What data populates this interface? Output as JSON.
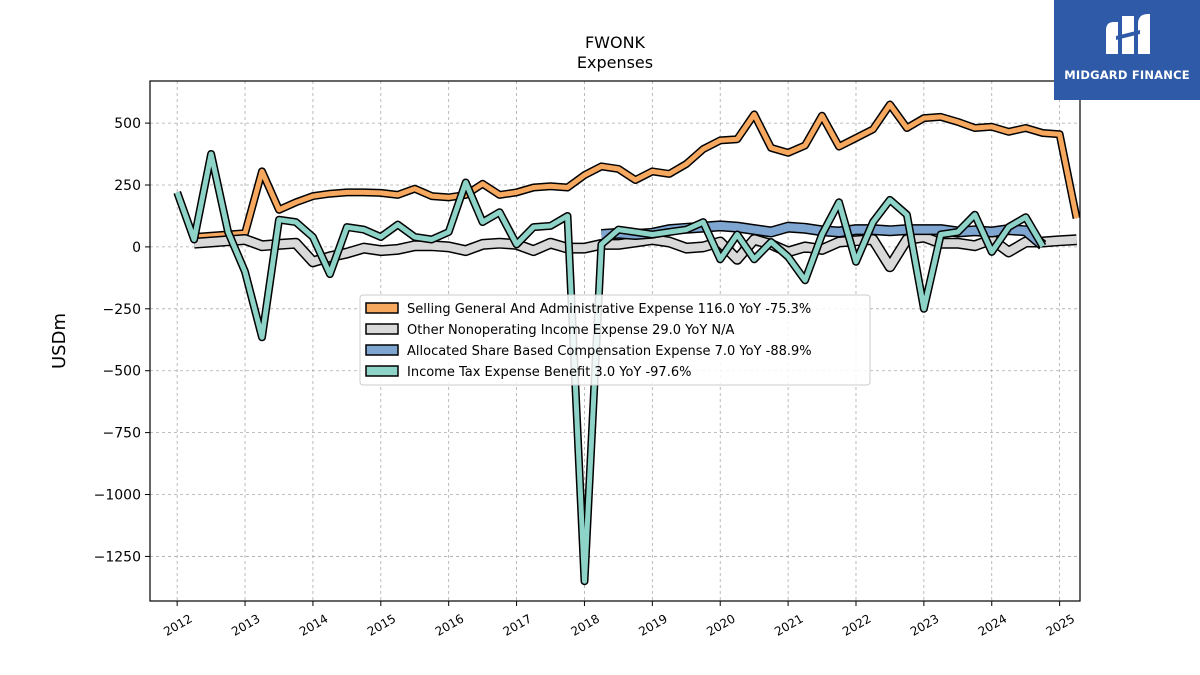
{
  "logo": {
    "text": "MIDGARD FINANCE",
    "icon": "midgard-m-logo-icon",
    "background": "#2f5aa8"
  },
  "chart_data": {
    "type": "line",
    "title": "FWONK",
    "subtitle": "Expenses",
    "xlabel": "",
    "ylabel": "USDm",
    "xlim": [
      2011.6,
      2025.3
    ],
    "ylim": [
      -1430,
      670
    ],
    "x_ticks": [
      "2012",
      "2013",
      "2014",
      "2015",
      "2016",
      "2017",
      "2018",
      "2019",
      "2020",
      "2021",
      "2022",
      "2023",
      "2024",
      "2025"
    ],
    "y_ticks": [
      500,
      250,
      0,
      -250,
      -500,
      -750,
      -1000,
      -1250
    ],
    "y_tick_labels": [
      "500",
      "250",
      "0",
      "−250",
      "−500",
      "−750",
      "−1000",
      "−1250"
    ],
    "grid": true,
    "legend_position": "center",
    "series": [
      {
        "name": "Selling General And Administrative Expense",
        "legend_label": "Selling General And Administrative Expense  116.0 YoY -75.3%",
        "color": "#f7a85f",
        "start": 2012.25,
        "step": 0.25,
        "values": [
          40,
          45,
          50,
          55,
          305,
          150,
          180,
          205,
          215,
          220,
          220,
          218,
          210,
          235,
          205,
          200,
          210,
          255,
          210,
          220,
          240,
          245,
          240,
          290,
          325,
          315,
          270,
          305,
          295,
          335,
          395,
          430,
          435,
          535,
          400,
          380,
          410,
          530,
          405,
          440,
          475,
          575,
          480,
          520,
          525,
          505,
          480,
          485,
          465,
          480,
          460,
          455,
          116
        ]
      },
      {
        "name": "Other Nonoperating Income Expense",
        "legend_label": "Other Nonoperating Income Expense  29.0 YoY N/A",
        "color": "#d9d9d9",
        "start": 2012.25,
        "step": 0.25,
        "values": [
          15,
          20,
          25,
          30,
          5,
          10,
          15,
          -60,
          -40,
          -25,
          -5,
          -15,
          -10,
          5,
          5,
          0,
          -15,
          10,
          15,
          10,
          -15,
          15,
          -5,
          -5,
          10,
          10,
          20,
          30,
          20,
          -5,
          0,
          20,
          -50,
          30,
          10,
          -20,
          0,
          -10,
          20,
          25,
          30,
          -80,
          30,
          40,
          15,
          15,
          5,
          30,
          -20,
          20,
          20,
          25,
          29
        ]
      },
      {
        "name": "Allocated Share Based Compensation Expense",
        "legend_label": "Allocated Share Based Compensation Expense  7.0 YoY -88.9%",
        "color": "#7ea6d0",
        "start": 2018.25,
        "step": 0.25,
        "values": [
          50,
          55,
          50,
          55,
          70,
          75,
          80,
          85,
          80,
          70,
          60,
          80,
          75,
          65,
          60,
          70,
          70,
          65,
          70,
          70,
          70,
          60,
          65,
          60,
          70,
          65,
          7
        ]
      },
      {
        "name": "Income Tax Expense Benefit",
        "legend_label": "Income Tax Expense Benefit  3.0 YoY -97.6%",
        "color": "#8dd3c7",
        "start": 2012.0,
        "step": 0.25,
        "values": [
          220,
          30,
          375,
          60,
          -100,
          -365,
          110,
          100,
          40,
          -110,
          80,
          70,
          40,
          90,
          40,
          30,
          60,
          260,
          100,
          140,
          10,
          80,
          85,
          125,
          -1350,
          10,
          70,
          60,
          50,
          60,
          70,
          100,
          -50,
          50,
          -50,
          20,
          -40,
          -135,
          50,
          180,
          -60,
          100,
          190,
          130,
          -250,
          50,
          60,
          130,
          -20,
          80,
          120,
          3
        ]
      }
    ]
  }
}
